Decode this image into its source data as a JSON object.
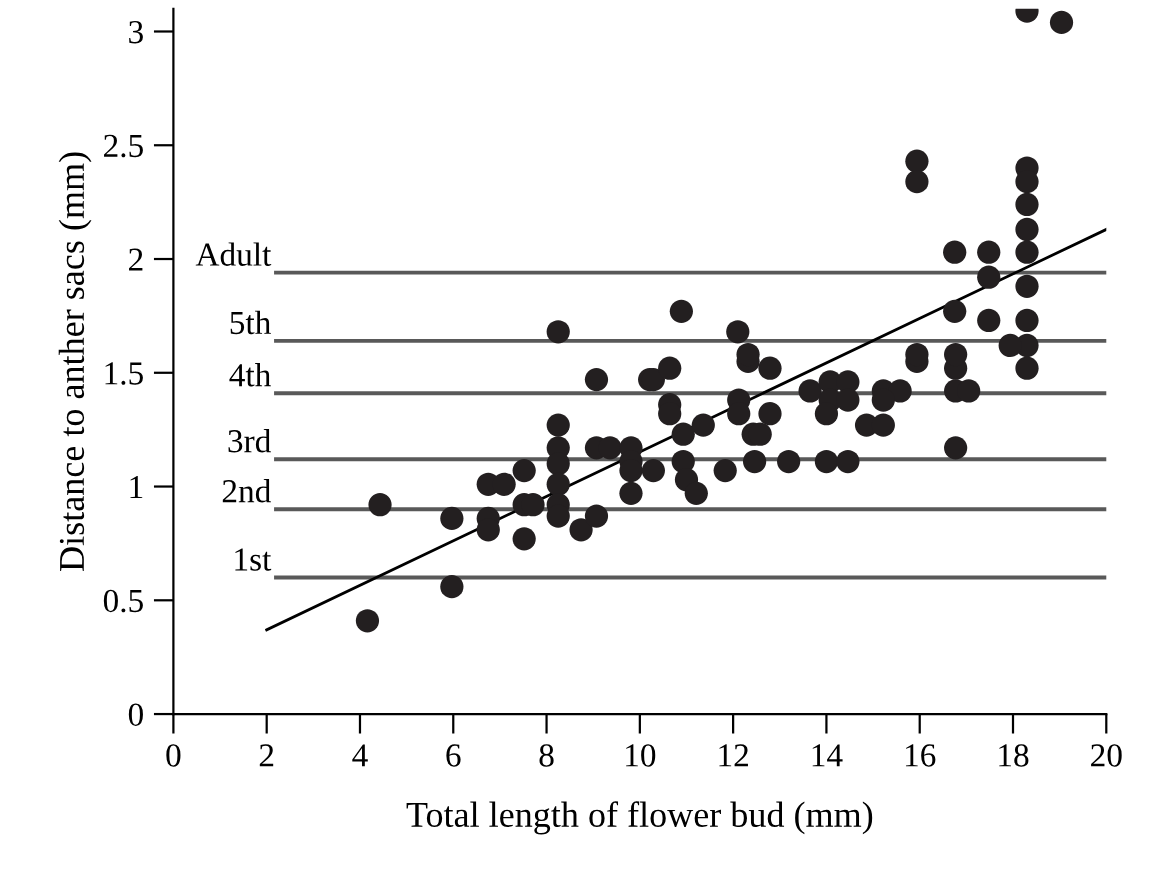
{
  "chart_data": {
    "type": "scatter",
    "xlabel": "Total length of flower bud (mm)",
    "ylabel": "Distance to anther sacs (mm)",
    "xlim": [
      0,
      20
    ],
    "xticks": [
      0,
      2,
      4,
      6,
      8,
      10,
      12,
      14,
      16,
      18,
      20
    ],
    "ylim": [
      0,
      3.1
    ],
    "yticks": [
      0,
      0.5,
      1,
      1.5,
      2,
      2.5,
      3
    ],
    "grid": false,
    "legend": false,
    "series": [
      {
        "color": "#231f20",
        "marker": "circle",
        "x": [
          4.16,
          4.43,
          5.97,
          5.97,
          6.75,
          7.09,
          6.75,
          6.75,
          7.52,
          7.52,
          7.71,
          7.52,
          8.25,
          8.25,
          8.25,
          8.25,
          8.25,
          8.25,
          8.74,
          9.07,
          9.07,
          9.36,
          9.07,
          9.81,
          9.81,
          9.81,
          9.81,
          10.21,
          10.29,
          8.25,
          10.29,
          10.64,
          10.64,
          10.64,
          11.36,
          10.93,
          10.93,
          11.0,
          11.21,
          11.83,
          12.12,
          12.12,
          12.32,
          12.79,
          12.79,
          12.43,
          12.58,
          12.46,
          13.19,
          14.0,
          14.46,
          13.65,
          14.08,
          14.46,
          14.08,
          14.46,
          14.0,
          14.86,
          15.22,
          15.22,
          15.58,
          15.22,
          15.94,
          16.77,
          16.77,
          16.77,
          17.05,
          18.3,
          18.3,
          19.04,
          15.94,
          15.94,
          18.3,
          18.3,
          18.3,
          18.3,
          18.3,
          18.3,
          18.3,
          18.3,
          17.94,
          16.75,
          17.48,
          17.48,
          17.48,
          16.75,
          16.77,
          15.94,
          10.89,
          12.1,
          12.32
        ],
        "values": [
          0.41,
          0.92,
          0.86,
          0.56,
          1.01,
          1.01,
          0.86,
          0.81,
          1.07,
          0.92,
          0.92,
          0.77,
          1.27,
          1.17,
          1.1,
          1.01,
          0.92,
          0.87,
          0.81,
          1.47,
          1.17,
          1.17,
          0.87,
          1.17,
          1.11,
          1.07,
          0.97,
          1.47,
          1.07,
          1.68,
          1.47,
          1.52,
          1.36,
          1.32,
          1.27,
          1.23,
          1.11,
          1.03,
          0.97,
          1.07,
          1.38,
          1.32,
          1.55,
          1.52,
          1.32,
          1.23,
          1.23,
          1.11,
          1.11,
          1.11,
          1.11,
          1.42,
          1.46,
          1.46,
          1.38,
          1.38,
          1.32,
          1.27,
          1.27,
          1.42,
          1.42,
          1.38,
          1.55,
          1.17,
          1.52,
          1.42,
          1.42,
          1.52,
          3.09,
          3.04,
          2.43,
          2.34,
          2.4,
          2.34,
          2.24,
          2.13,
          2.03,
          1.88,
          1.73,
          1.62,
          1.62,
          2.03,
          2.03,
          1.92,
          1.73,
          1.77,
          1.58,
          1.58,
          1.77,
          1.68,
          1.58
        ]
      },
      {
        "type": "line",
        "marker": "none",
        "color": "#000000",
        "x": [
          2,
          20
        ],
        "values": [
          0.37,
          2.13
        ]
      }
    ],
    "ref_lines": [
      {
        "axis": "y",
        "value": 0.6,
        "label": "1st",
        "color": "#595959"
      },
      {
        "axis": "y",
        "value": 0.9,
        "label": "2nd",
        "color": "#595959"
      },
      {
        "axis": "y",
        "value": 1.12,
        "label": "3rd",
        "color": "#595959"
      },
      {
        "axis": "y",
        "value": 1.41,
        "label": "4th",
        "color": "#595959"
      },
      {
        "axis": "y",
        "value": 1.64,
        "label": "5th",
        "color": "#595959"
      },
      {
        "axis": "y",
        "value": 1.94,
        "label": "Adult",
        "color": "#595959"
      }
    ]
  }
}
